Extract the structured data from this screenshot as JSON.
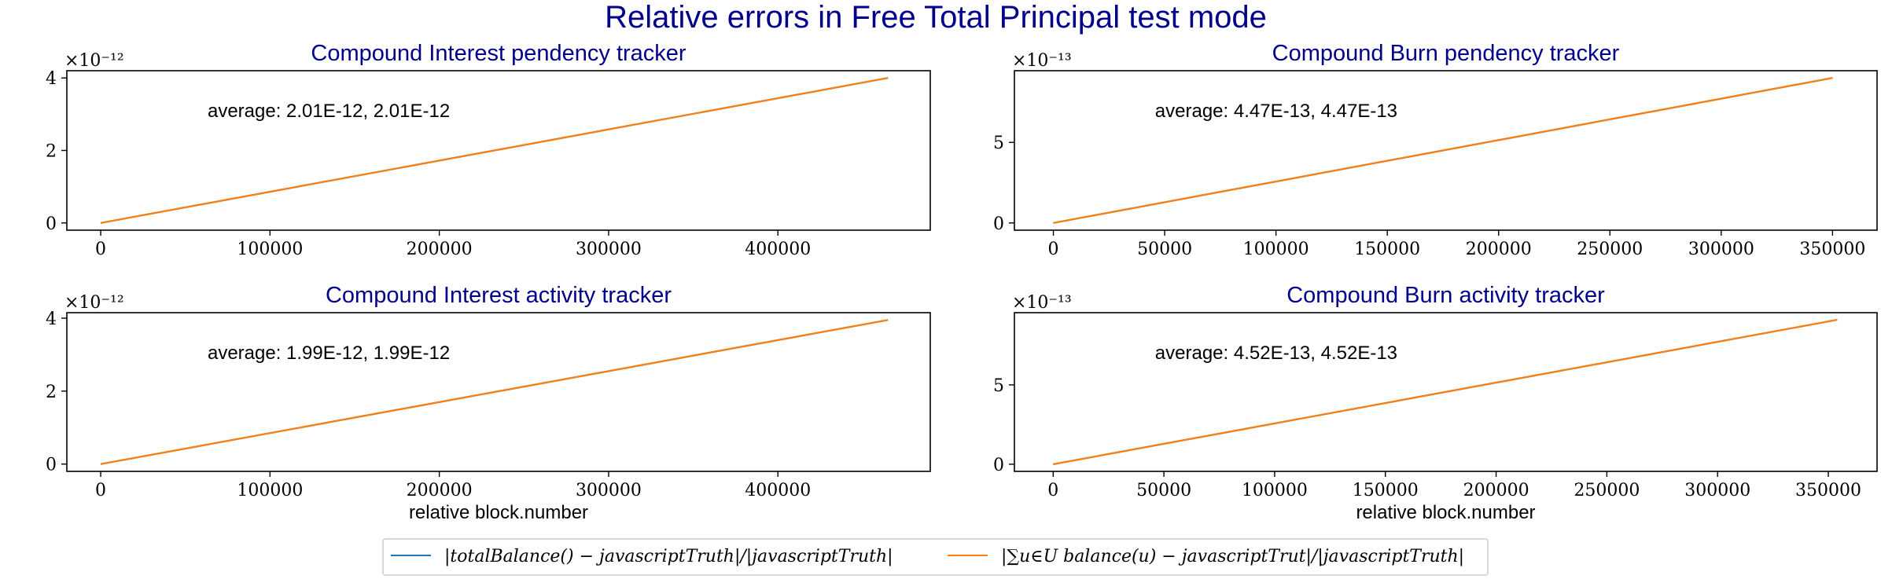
{
  "figure": {
    "title": "Relative errors in Free Total Principal test mode",
    "title_color": "#00008b",
    "legend": [
      {
        "label": "|totalBalance() − javascriptTruth|/|javascriptTruth|",
        "color": "#1f77b4"
      },
      {
        "label": "|∑u∈U balance(u) − javascriptTrut|/|javascriptTruth|",
        "color": "#ff7f0e"
      }
    ],
    "legend_placement": "bottom-center"
  },
  "chart_data": [
    {
      "type": "line",
      "title": "Compound Interest pendency tracker",
      "xlabel": "",
      "ylabel": "",
      "x_offset_label": "",
      "y_offset_label": "×10⁻¹²",
      "annotation": "average: 2.01E-12, 2.01E-12",
      "xlim": [
        -20000,
        490000
      ],
      "ylim": [
        -0.2,
        4.2
      ],
      "xticks": [
        0,
        100000,
        200000,
        300000,
        400000
      ],
      "xtick_labels": [
        "0",
        "100000",
        "200000",
        "300000",
        "400000"
      ],
      "yticks": [
        0,
        2,
        4
      ],
      "ytick_labels": [
        "0",
        "2",
        "4"
      ],
      "y_scale": 1e-12,
      "series": [
        {
          "color": "#1f77b4",
          "x": [
            0,
            465000
          ],
          "y": [
            0,
            4.0
          ]
        },
        {
          "color": "#ff7f0e",
          "x": [
            0,
            465000
          ],
          "y": [
            0,
            4.0
          ]
        }
      ]
    },
    {
      "type": "line",
      "title": "Compound Burn pendency tracker",
      "xlabel": "",
      "ylabel": "",
      "x_offset_label": "",
      "y_offset_label": "×10⁻¹³",
      "annotation": "average: 4.47E-13, 4.47E-13",
      "xlim": [
        -17500,
        370000
      ],
      "ylim": [
        -0.45,
        9.45
      ],
      "xticks": [
        0,
        50000,
        100000,
        150000,
        200000,
        250000,
        300000,
        350000
      ],
      "xtick_labels": [
        "0",
        "50000",
        "100000",
        "150000",
        "200000",
        "250000",
        "300000",
        "350000"
      ],
      "yticks": [
        0,
        5
      ],
      "ytick_labels": [
        "0",
        "5"
      ],
      "y_scale": 1e-13,
      "series": [
        {
          "color": "#1f77b4",
          "x": [
            0,
            350000
          ],
          "y": [
            0,
            9.0
          ]
        },
        {
          "color": "#ff7f0e",
          "x": [
            0,
            350000
          ],
          "y": [
            0,
            9.0
          ]
        }
      ]
    },
    {
      "type": "line",
      "title": "Compound Interest activity tracker",
      "xlabel": "relative block.number",
      "ylabel": "",
      "x_offset_label": "",
      "y_offset_label": "×10⁻¹²",
      "annotation": "average: 1.99E-12, 1.99E-12",
      "xlim": [
        -20000,
        490000
      ],
      "ylim": [
        -0.2,
        4.15
      ],
      "xticks": [
        0,
        100000,
        200000,
        300000,
        400000
      ],
      "xtick_labels": [
        "0",
        "100000",
        "200000",
        "300000",
        "400000"
      ],
      "yticks": [
        0,
        2,
        4
      ],
      "ytick_labels": [
        "0",
        "2",
        "4"
      ],
      "y_scale": 1e-12,
      "series": [
        {
          "color": "#1f77b4",
          "x": [
            0,
            465000
          ],
          "y": [
            0,
            3.95
          ]
        },
        {
          "color": "#ff7f0e",
          "x": [
            0,
            465000
          ],
          "y": [
            0,
            3.95
          ]
        }
      ]
    },
    {
      "type": "line",
      "title": "Compound Burn activity tracker",
      "xlabel": "relative block.number",
      "ylabel": "",
      "x_offset_label": "",
      "y_offset_label": "×10⁻¹³",
      "annotation": "average: 4.52E-13, 4.52E-13",
      "xlim": [
        -17500,
        372000
      ],
      "ylim": [
        -0.45,
        9.55
      ],
      "xticks": [
        0,
        50000,
        100000,
        150000,
        200000,
        250000,
        300000,
        350000
      ],
      "xtick_labels": [
        "0",
        "50000",
        "100000",
        "150000",
        "200000",
        "250000",
        "300000",
        "350000"
      ],
      "yticks": [
        0,
        5
      ],
      "ytick_labels": [
        "0",
        "5"
      ],
      "y_scale": 1e-13,
      "series": [
        {
          "color": "#1f77b4",
          "x": [
            0,
            354000
          ],
          "y": [
            0,
            9.1
          ]
        },
        {
          "color": "#ff7f0e",
          "x": [
            0,
            354000
          ],
          "y": [
            0,
            9.1
          ]
        }
      ]
    }
  ]
}
